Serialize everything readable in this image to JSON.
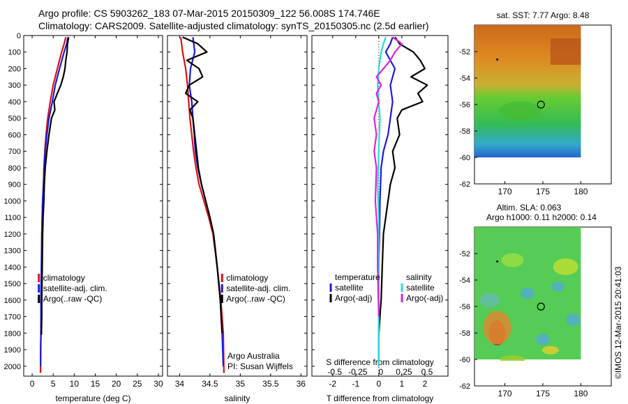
{
  "header": {
    "title_line1": "Argo profile: CS 5903262_183 07-Mar-2015 20150309_122 56.008S 174.746E",
    "title_line2": "Climatology: CARS2009. Satellite-adjusted climatology: synTS_20150305.nc (2.5d earlier)"
  },
  "colors": {
    "climatology": "#dd1111",
    "satellite": "#1a1add",
    "argo": "#000000",
    "satellite_salinity": "#22dddd",
    "argo_salinity_diff": "#dd22dd"
  },
  "chart_data": [
    {
      "type": "line",
      "id": "temperature",
      "xlabel": "temperature (deg C)",
      "ylabel": "",
      "xlim": [
        -2,
        31
      ],
      "ylim": [
        2060,
        0
      ],
      "xticks": [
        0,
        5,
        10,
        15,
        20,
        25,
        30
      ],
      "yticks": [
        0,
        100,
        200,
        300,
        400,
        500,
        600,
        700,
        800,
        900,
        1000,
        1100,
        1200,
        1300,
        1400,
        1500,
        1600,
        1700,
        1800,
        1900,
        2000
      ],
      "legend": [
        "climatology",
        "satellite-adj. clim.",
        "Argo(..raw -QC)"
      ],
      "series": [
        {
          "name": "climatology",
          "color_key": "climatology",
          "x": [
            8.0,
            7.6,
            7.0,
            6.0,
            5.0,
            4.3,
            3.7,
            3.3,
            3.0,
            2.8,
            2.7,
            2.5,
            2.4,
            2.3,
            2.3,
            2.2,
            2.1,
            2.0,
            2.0,
            2.0
          ],
          "y": [
            10,
            50,
            100,
            200,
            300,
            400,
            500,
            600,
            700,
            800,
            900,
            1000,
            1100,
            1200,
            1400,
            1600,
            1800,
            1900,
            2000,
            2040
          ]
        },
        {
          "name": "satellite-adj. clim.",
          "color_key": "satellite",
          "x": [
            8.5,
            8.2,
            7.6,
            6.5,
            5.5,
            4.8,
            4.0,
            3.5,
            3.1,
            2.9,
            2.7,
            2.5,
            2.4,
            2.3,
            2.2,
            2.1,
            2.1,
            2.0
          ],
          "y": [
            10,
            50,
            100,
            200,
            300,
            400,
            500,
            600,
            700,
            800,
            900,
            1000,
            1100,
            1200,
            1400,
            1600,
            1800,
            2000
          ]
        },
        {
          "name": "Argo(..raw -QC)",
          "color_key": "argo",
          "x": [
            8.7,
            8.4,
            8.3,
            8.0,
            7.8,
            7.4,
            6.8,
            6.0,
            5.2,
            5.4,
            4.6,
            4.0,
            3.5,
            3.1,
            2.9,
            2.8,
            2.6,
            2.5,
            2.4,
            2.3,
            2.3,
            2.2
          ],
          "y": [
            10,
            50,
            100,
            150,
            200,
            250,
            300,
            350,
            400,
            450,
            500,
            600,
            700,
            800,
            900,
            1000,
            1100,
            1200,
            1400,
            1600,
            1700,
            1810
          ]
        }
      ]
    },
    {
      "type": "line",
      "id": "salinity",
      "xlabel": "salinity",
      "ylabel": "",
      "xlim": [
        33.8,
        36.1
      ],
      "ylim": [
        2060,
        0
      ],
      "xticks": [
        34,
        34.5,
        35,
        35.5,
        36
      ],
      "legend": [
        "climatology",
        "satellite-adj. clim.",
        "Argo(..raw -QC)"
      ],
      "annotation": [
        "Argo Australia",
        "PI: Susan Wijffels"
      ],
      "series": [
        {
          "name": "climatology",
          "color_key": "climatology",
          "x": [
            34.02,
            34.05,
            34.1,
            34.13,
            34.15,
            34.17,
            34.2,
            34.23,
            34.27,
            34.32,
            34.4,
            34.48,
            34.55,
            34.62,
            34.68,
            34.72,
            34.73
          ],
          "y": [
            10,
            100,
            200,
            300,
            400,
            500,
            600,
            700,
            800,
            900,
            1000,
            1100,
            1200,
            1400,
            1600,
            1800,
            2040
          ]
        },
        {
          "name": "satellite-adj. clim.",
          "color_key": "satellite",
          "x": [
            34.22,
            34.25,
            34.18,
            34.16,
            34.2,
            34.22,
            34.24,
            34.26,
            34.3,
            34.36,
            34.43,
            34.5,
            34.56,
            34.62,
            34.67,
            34.7,
            34.72
          ],
          "y": [
            10,
            100,
            200,
            300,
            400,
            500,
            600,
            700,
            800,
            900,
            1000,
            1100,
            1200,
            1400,
            1600,
            1800,
            2000
          ]
        },
        {
          "name": "Argo(..raw -QC)",
          "color_key": "argo",
          "x": [
            34.05,
            34.3,
            34.45,
            34.12,
            34.32,
            34.38,
            34.16,
            34.1,
            34.3,
            34.17,
            34.22,
            34.25,
            34.28,
            34.31,
            34.36,
            34.43,
            34.5,
            34.56,
            34.62,
            34.67,
            34.7
          ],
          "y": [
            10,
            50,
            100,
            150,
            200,
            250,
            300,
            350,
            400,
            450,
            500,
            600,
            700,
            800,
            900,
            1000,
            1100,
            1200,
            1400,
            1600,
            1800
          ]
        }
      ]
    },
    {
      "type": "line",
      "id": "difference",
      "xlabel": "T difference from climatology",
      "xlabel_top": "S difference from climatology",
      "xlim": [
        -2.9,
        3.0
      ],
      "ylim": [
        2060,
        0
      ],
      "xticks": [
        -2,
        -1,
        0,
        1,
        2
      ],
      "xticks_secondary_labels": [
        "-0.5",
        "-0.25",
        "0",
        "0.25",
        "0.5"
      ],
      "legend_temperature_title": "temperature",
      "legend_salinity_title": "salinity",
      "legend": [
        "satellite",
        "Argo(-adj)",
        "satellite",
        "Argo(-adj)"
      ],
      "series": [
        {
          "name": "satellite",
          "group": "temperature",
          "color_key": "satellite",
          "x": [
            0.6,
            0.5,
            0.3,
            0.7,
            0.5,
            0.6,
            0.5,
            0.4,
            0.2,
            0.1,
            0.05,
            0.03,
            0.0,
            0.0,
            0.0
          ],
          "y": [
            10,
            50,
            100,
            200,
            300,
            400,
            500,
            600,
            700,
            800,
            1000,
            1200,
            1400,
            1700,
            2000
          ]
        },
        {
          "name": "Argo(-adj)",
          "group": "temperature",
          "color_key": "argo",
          "x": [
            0.7,
            0.9,
            1.5,
            1.8,
            2.0,
            1.4,
            2.1,
            1.7,
            1.9,
            1.0,
            0.8,
            0.9,
            0.6,
            0.7,
            0.5,
            0.4,
            0.3,
            0.2,
            0.15,
            0.1,
            0.05,
            0.0
          ],
          "y": [
            10,
            50,
            100,
            150,
            200,
            250,
            300,
            350,
            400,
            450,
            500,
            600,
            700,
            800,
            900,
            1000,
            1100,
            1200,
            1400,
            1600,
            1700,
            1810
          ]
        },
        {
          "name": "satellite",
          "group": "salinity",
          "color_key": "satellite_salinity",
          "x": [
            0.3,
            0.2,
            0.1,
            0.0,
            -0.05,
            0.0,
            0.05,
            0.0,
            -0.05,
            0.0,
            0.0,
            0.0,
            0.0
          ],
          "y": [
            10,
            50,
            100,
            200,
            300,
            400,
            500,
            700,
            900,
            1100,
            1400,
            1700,
            2000
          ]
        },
        {
          "name": "Argo(-adj)",
          "group": "salinity",
          "color_key": "argo_salinity_diff",
          "x": [
            0.6,
            1.0,
            0.7,
            0.5,
            0.2,
            -0.1,
            0.1,
            -0.1,
            0.0,
            -0.1,
            -0.2,
            -0.1,
            -0.2,
            -0.1,
            -0.15,
            -0.1,
            -0.05,
            -0.05,
            0.0
          ],
          "y": [
            10,
            50,
            100,
            150,
            200,
            250,
            300,
            350,
            400,
            450,
            500,
            600,
            700,
            800,
            1000,
            1100,
            1200,
            1400,
            1700
          ]
        }
      ]
    },
    {
      "type": "heatmap",
      "id": "sst-map",
      "title": "sat. SST: 7.77 Argo: 8.48",
      "xlim": [
        166,
        184
      ],
      "ylim": [
        -62,
        -50
      ],
      "xticks": [
        170,
        175,
        180
      ],
      "yticks": [
        -52,
        -54,
        -56,
        -58,
        -60,
        -62
      ],
      "argo_position": [
        174.746,
        -56.008
      ]
    },
    {
      "type": "heatmap",
      "id": "sla-map",
      "title": "Altim. SLA: 0.063",
      "subtitle": "Argo h1000: 0.11 h2000: 0.14",
      "xlim": [
        166,
        184
      ],
      "ylim": [
        -62,
        -50
      ],
      "xticks": [
        170,
        175,
        180
      ],
      "yticks": [
        -52,
        -54,
        -56,
        -58,
        -60,
        -62
      ],
      "argo_position": [
        174.746,
        -56.008
      ]
    }
  ],
  "footer": {
    "credit": "©IMOS 12-Mar-2015 20:41:03"
  }
}
